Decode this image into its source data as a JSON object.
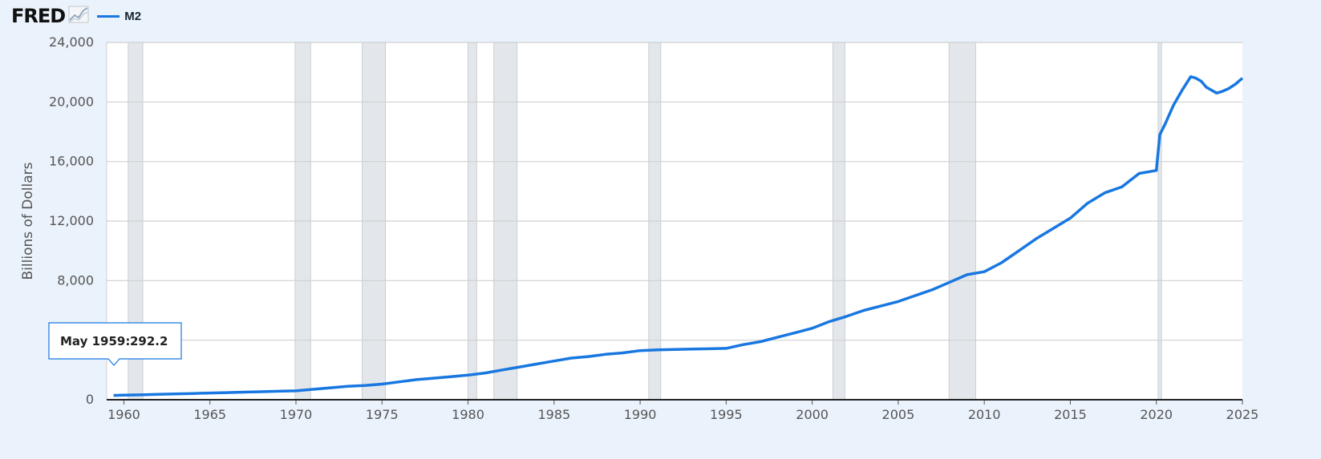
{
  "header": {
    "logo_text": "FRED",
    "legend_label": "M2",
    "logo_icon": "line-chart-icon"
  },
  "colors": {
    "background": "#eaf2fb",
    "plot_background": "#ffffff",
    "series": "#1877e0",
    "recession": "#e3e7eb",
    "grid": "#d0d0d0"
  },
  "tooltip": {
    "date": "May 1959:",
    "value": "292.2"
  },
  "chart_data": {
    "type": "line",
    "title": "",
    "xlabel": "",
    "ylabel": "Billions of Dollars",
    "xlim": [
      1959,
      2025
    ],
    "ylim": [
      0,
      24000
    ],
    "y_ticks": [
      0,
      4000,
      8000,
      12000,
      16000,
      20000,
      24000
    ],
    "y_tick_labels": [
      "0",
      "",
      "8,000",
      "12,000",
      "16,000",
      "20,000",
      "24,000"
    ],
    "x_ticks": [
      1960,
      1965,
      1970,
      1975,
      1980,
      1985,
      1990,
      1995,
      2000,
      2005,
      2010,
      2015,
      2020,
      2025
    ],
    "x_tick_labels": [
      "1960",
      "1965",
      "1970",
      "1975",
      "1980",
      "1985",
      "1990",
      "1995",
      "2000",
      "2005",
      "2010",
      "2015",
      "2020",
      "2025"
    ],
    "grid": true,
    "legend": "top-left",
    "recessions": [
      [
        1960.25,
        1961.1
      ],
      [
        1969.95,
        1970.85
      ],
      [
        1973.85,
        1975.2
      ],
      [
        1980.0,
        1980.5
      ],
      [
        1981.5,
        1982.85
      ],
      [
        1990.5,
        1991.2
      ],
      [
        2001.2,
        2001.9
      ],
      [
        2007.95,
        2009.5
      ],
      [
        2020.1,
        2020.3
      ]
    ],
    "series": [
      {
        "name": "M2",
        "x": [
          1959.4,
          1960,
          1961,
          1962,
          1963,
          1964,
          1965,
          1966,
          1967,
          1968,
          1969,
          1970,
          1971,
          1972,
          1973,
          1974,
          1975,
          1976,
          1977,
          1978,
          1979,
          1980,
          1981,
          1982,
          1983,
          1984,
          1985,
          1986,
          1987,
          1988,
          1989,
          1990,
          1991,
          1992,
          1993,
          1994,
          1995,
          1996,
          1997,
          1998,
          1999,
          2000,
          2001,
          2002,
          2003,
          2004,
          2005,
          2006,
          2007,
          2008,
          2009,
          2010,
          2011,
          2012,
          2013,
          2014,
          2015,
          2016,
          2017,
          2018,
          2019,
          2020.0,
          2020.2,
          2020.5,
          2021.0,
          2021.5,
          2022.0,
          2022.3,
          2022.6,
          2022.9,
          2023.2,
          2023.5,
          2023.8,
          2024.2,
          2024.6,
          2025.0
        ],
        "values": [
          292.2,
          310,
          330,
          360,
          390,
          420,
          450,
          480,
          510,
          540,
          570,
          600,
          700,
          800,
          900,
          950,
          1050,
          1200,
          1350,
          1450,
          1550,
          1650,
          1800,
          2000,
          2200,
          2400,
          2600,
          2800,
          2900,
          3050,
          3150,
          3300,
          3350,
          3380,
          3400,
          3420,
          3450,
          3700,
          3900,
          4200,
          4500,
          4800,
          5250,
          5600,
          6000,
          6300,
          6600,
          7000,
          7400,
          7900,
          8400,
          8600,
          9200,
          10000,
          10800,
          11500,
          12200,
          13200,
          13900,
          14300,
          15200,
          15400,
          17800,
          18500,
          19800,
          20800,
          21700,
          21600,
          21400,
          21000,
          20800,
          20600,
          20700,
          20900,
          21200,
          21600
        ]
      }
    ]
  }
}
